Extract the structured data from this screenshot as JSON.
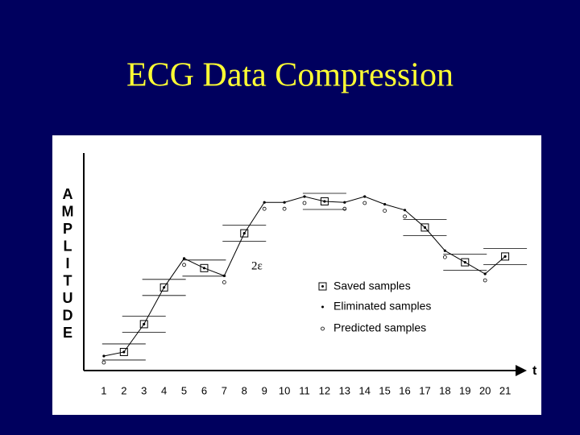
{
  "chart_data": {
    "type": "line",
    "title": "ECG Data Compression",
    "y_label_letters": [
      "A",
      "M",
      "P",
      "L",
      "I",
      "T",
      "U",
      "D",
      "E"
    ],
    "x_label": "t",
    "x": [
      1,
      2,
      3,
      4,
      5,
      6,
      7,
      8,
      9,
      10,
      11,
      12,
      13,
      14,
      15,
      16,
      17,
      18,
      19,
      20,
      21
    ],
    "xlim": [
      0,
      22
    ],
    "xticks": [
      1,
      2,
      3,
      4,
      5,
      6,
      7,
      8,
      9,
      10,
      11,
      12,
      13,
      14,
      15,
      16,
      17,
      18,
      19,
      20,
      21
    ],
    "values": [
      7.5,
      9.6,
      24,
      43,
      58,
      53,
      49,
      71,
      87,
      87,
      90,
      87.5,
      87,
      90,
      86,
      83,
      74,
      62,
      56,
      50,
      59
    ],
    "ylim": [
      0,
      100
    ],
    "saved": [
      2,
      3,
      4,
      6,
      8,
      12,
      17,
      19,
      21
    ],
    "color": "#000000",
    "annotation": "2ε",
    "legend": [
      "Saved samples",
      "Eliminated samples",
      "Predicted samples"
    ]
  }
}
